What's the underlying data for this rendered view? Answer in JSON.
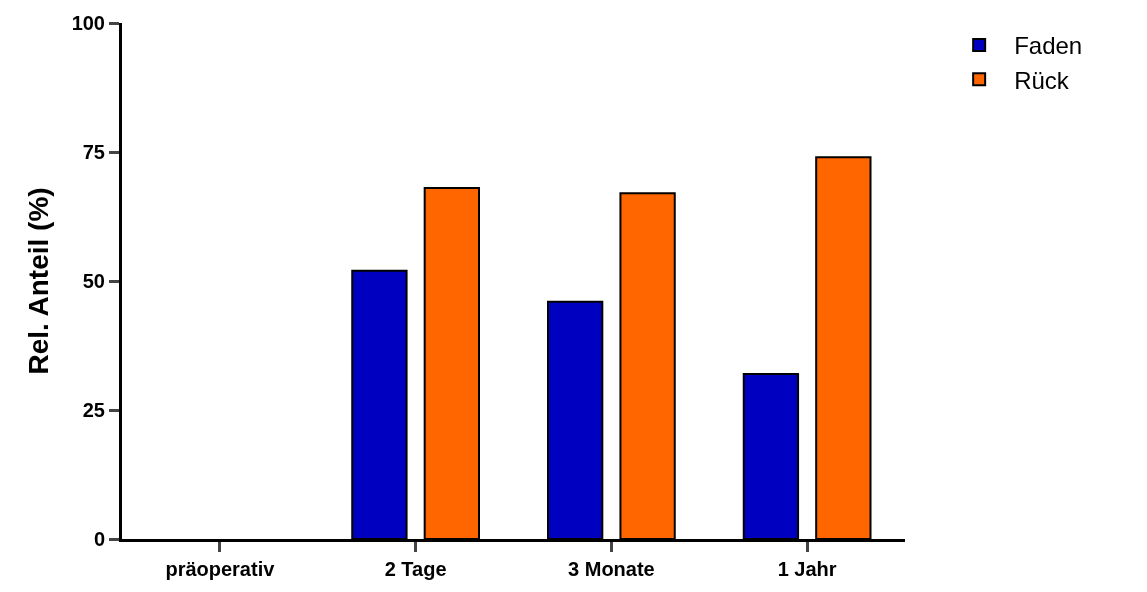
{
  "chart_data": {
    "type": "bar",
    "ylabel": "Rel. Anteil (%)",
    "categories": [
      "präoperativ",
      "2 Tage",
      "3 Monate",
      "1 Jahr"
    ],
    "series": [
      {
        "name": "Faden",
        "color": "#0000c0",
        "values": [
          null,
          52,
          46,
          32
        ]
      },
      {
        "name": "Rück",
        "color": "#ff6600",
        "values": [
          null,
          68,
          67,
          74
        ]
      }
    ],
    "ylim": [
      0,
      100
    ],
    "yticks": [
      0,
      25,
      50,
      75,
      100
    ],
    "legend": "top right"
  }
}
